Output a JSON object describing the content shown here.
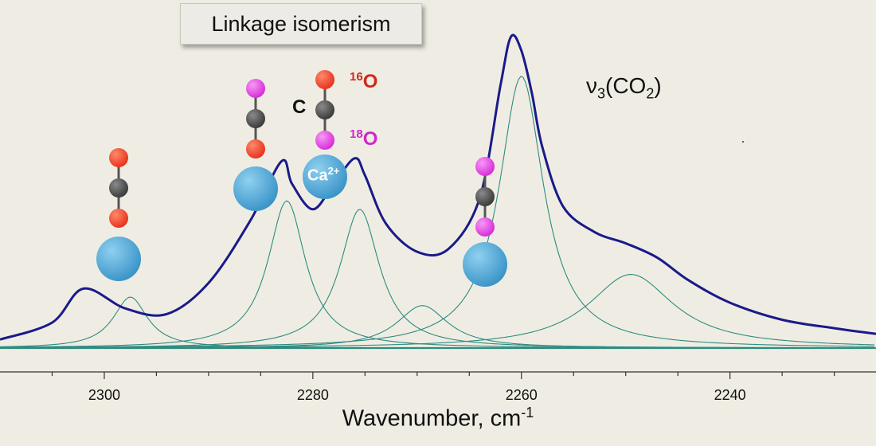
{
  "title": "Linkage isomerism",
  "mode": {
    "label": "ν",
    "sub1": "3",
    "mid": "(CO",
    "sub2": "2",
    "end": ")"
  },
  "xlabel": {
    "text": "Wavenumber, cm",
    "sup": "-1"
  },
  "annotations": {
    "carbon": "C",
    "o16": {
      "mass": "16",
      "symbol": "O"
    },
    "o18": {
      "mass": "18",
      "symbol": "O"
    },
    "cation": {
      "symbol": "Ca",
      "charge": "2+"
    }
  },
  "colors": {
    "envelope": "#1a1a8a",
    "components": "#2e8b80",
    "oxygen16": "#e8321e",
    "oxygen18": "#d92cd9",
    "carbon": "#3a3a3a",
    "cation": "#3b95c8",
    "background": "#efede3"
  },
  "chart_data": {
    "type": "line",
    "xlabel": "Wavenumber, cm-1",
    "ylabel": "",
    "xlim": [
      2310,
      2226
    ],
    "x_reversed": true,
    "y_axis_visible": false,
    "xticks": [
      2300,
      2280,
      2260,
      2240
    ],
    "series": [
      {
        "role": "envelope",
        "x": [
          2310,
          2305,
          2302,
          2298,
          2294,
          2290,
          2286,
          2283,
          2282,
          2280,
          2278,
          2276,
          2275,
          2273,
          2270,
          2267,
          2264,
          2262,
          2261,
          2260,
          2259,
          2258,
          2256,
          2253,
          2250,
          2247,
          2244,
          2240,
          2235,
          2230,
          2226
        ],
        "y": [
          0.03,
          0.09,
          0.21,
          0.14,
          0.12,
          0.23,
          0.45,
          0.66,
          0.58,
          0.49,
          0.58,
          0.67,
          0.61,
          0.44,
          0.34,
          0.35,
          0.53,
          0.93,
          1.1,
          1.05,
          0.9,
          0.71,
          0.5,
          0.41,
          0.37,
          0.32,
          0.24,
          0.16,
          0.1,
          0.07,
          0.05
        ]
      },
      {
        "role": "component",
        "center": 2297.5,
        "height": 0.18,
        "hwhm": 2.0
      },
      {
        "role": "component",
        "center": 2282.5,
        "height": 0.52,
        "hwhm": 2.2
      },
      {
        "role": "component",
        "center": 2275.5,
        "height": 0.49,
        "hwhm": 2.3
      },
      {
        "role": "component",
        "center": 2269.5,
        "height": 0.15,
        "hwhm": 3.0
      },
      {
        "role": "component",
        "center": 2260.0,
        "height": 0.96,
        "hwhm": 2.6
      },
      {
        "role": "component",
        "center": 2249.5,
        "height": 0.26,
        "hwhm": 5.0
      }
    ]
  }
}
